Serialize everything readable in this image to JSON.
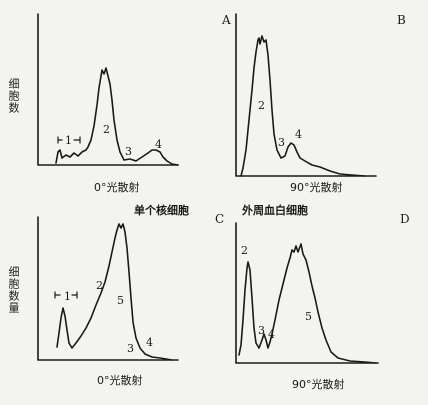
{
  "panels": {
    "A": {
      "letter": "A",
      "ylabel": "细胞数",
      "xlabel": "0°光散射",
      "peaks": [
        "1",
        "2",
        "3",
        "4"
      ]
    },
    "B": {
      "letter": "B",
      "xlabel": "90°光散射",
      "peaks": [
        "2",
        "3",
        "4"
      ]
    },
    "C": {
      "letter": "C",
      "ylabel": "细胞数量",
      "xlabel": "0°光散射",
      "peaks": [
        "1",
        "2",
        "5",
        "3",
        "4"
      ]
    },
    "D": {
      "letter": "D",
      "xlabel": "90°光散射",
      "peaks": [
        "2",
        "3",
        "4",
        "5"
      ]
    }
  },
  "row_captions": {
    "left": "单个核细胞",
    "right": "外周血白细胞"
  }
}
